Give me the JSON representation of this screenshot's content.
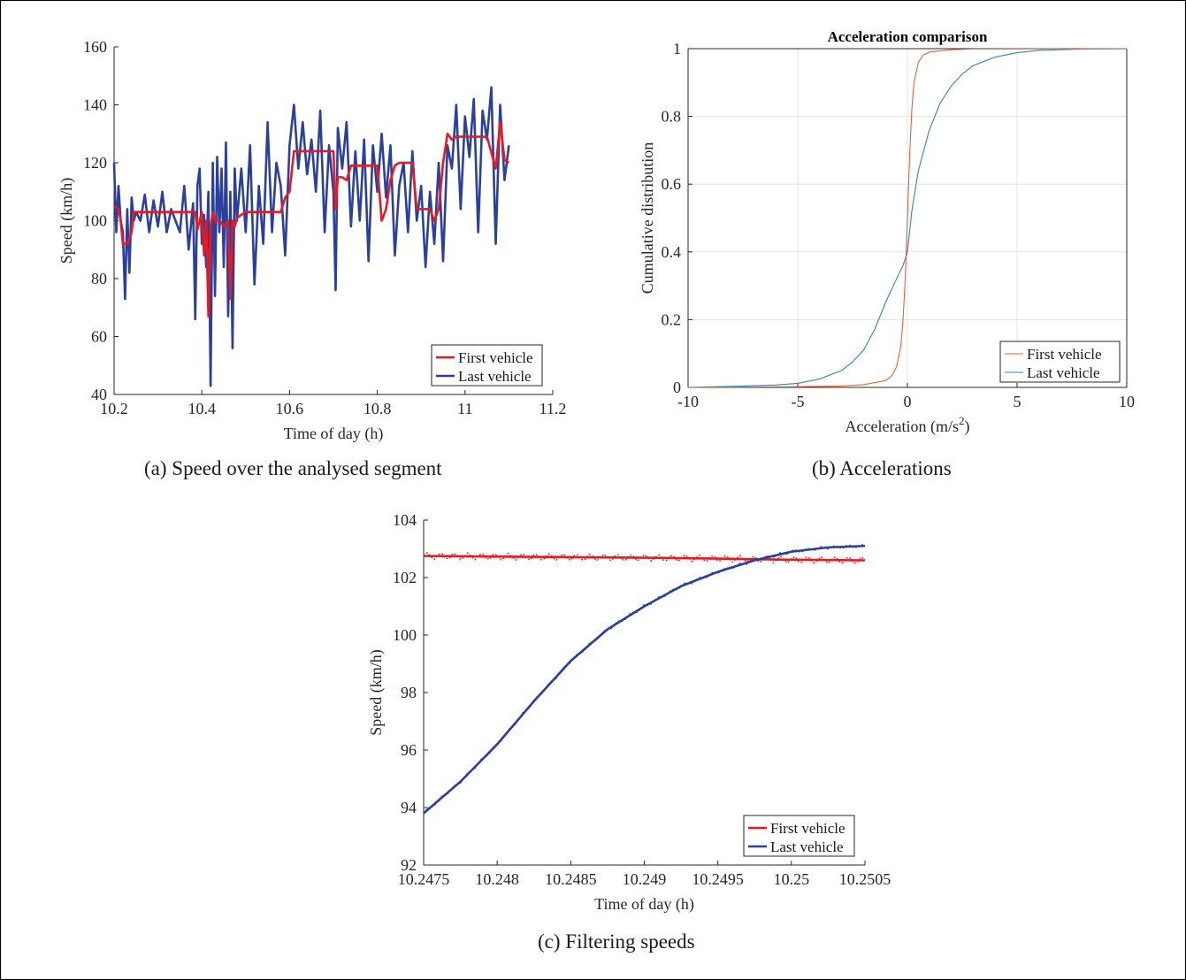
{
  "captions": {
    "a": "(a)  Speed over the analysed segment",
    "b": "(b)  Accelerations",
    "c": "(c)  Filtering speeds"
  },
  "colors": {
    "first": "#e41b23",
    "last": "#2b3f9d",
    "first_thin": "#e0643c",
    "last_thin": "#3c7fb4",
    "grid": "#e3e3e3",
    "axis": "#262626"
  },
  "chart_data": [
    {
      "id": "a",
      "type": "line",
      "title": "",
      "xlabel": "Time of day (h)",
      "ylabel": "Speed (km/h)",
      "xlim": [
        10.2,
        11.2
      ],
      "ylim": [
        40,
        160
      ],
      "xticks": [
        "10.2",
        "10.4",
        "10.6",
        "10.8",
        "11",
        "11.2"
      ],
      "yticks": [
        "40",
        "60",
        "80",
        "100",
        "120",
        "140",
        "160"
      ],
      "grid": false,
      "legend_position": "bottom-right",
      "series": [
        {
          "name": "First vehicle",
          "x": [
            10.2,
            10.21,
            10.215,
            10.22,
            10.23,
            10.24,
            10.245,
            10.25,
            10.3,
            10.35,
            10.385,
            10.39,
            10.395,
            10.4,
            10.405,
            10.41,
            10.415,
            10.42,
            10.425,
            10.43,
            10.44,
            10.45,
            10.46,
            10.465,
            10.47,
            10.475,
            10.48,
            10.49,
            10.5,
            10.55,
            10.58,
            10.59,
            10.6,
            10.61,
            10.62,
            10.65,
            10.7,
            10.705,
            10.71,
            10.72,
            10.73,
            10.74,
            10.75,
            10.8,
            10.81,
            10.82,
            10.83,
            10.84,
            10.85,
            10.88,
            10.89,
            10.9,
            10.92,
            10.93,
            10.94,
            10.95,
            10.96,
            10.97,
            10.98,
            11.0,
            11.05,
            11.07,
            11.08,
            11.09,
            11.1
          ],
          "y": [
            105,
            104,
            100,
            92,
            92,
            96,
            103,
            103,
            103,
            103,
            103,
            97,
            100,
            103,
            88,
            100,
            67,
            98,
            103,
            100,
            100,
            98,
            100,
            73,
            100,
            98,
            101,
            102,
            103,
            103,
            103,
            108,
            110,
            124,
            124,
            124,
            124,
            104,
            115,
            115,
            114,
            119,
            119,
            119,
            100,
            104,
            114,
            119,
            120,
            120,
            104,
            104,
            104,
            100,
            104,
            120,
            130,
            128,
            129,
            129,
            129,
            118,
            134,
            121,
            120
          ]
        },
        {
          "name": "Last vehicle",
          "x": [
            10.2,
            10.205,
            10.21,
            10.215,
            10.22,
            10.225,
            10.23,
            10.235,
            10.24,
            10.245,
            10.25,
            10.26,
            10.27,
            10.28,
            10.29,
            10.3,
            10.31,
            10.32,
            10.33,
            10.34,
            10.35,
            10.36,
            10.37,
            10.38,
            10.385,
            10.39,
            10.395,
            10.4,
            10.405,
            10.41,
            10.415,
            10.42,
            10.425,
            10.43,
            10.435,
            10.44,
            10.445,
            10.45,
            10.455,
            10.46,
            10.465,
            10.47,
            10.475,
            10.48,
            10.49,
            10.5,
            10.51,
            10.52,
            10.53,
            10.54,
            10.55,
            10.56,
            10.57,
            10.58,
            10.59,
            10.6,
            10.61,
            10.62,
            10.63,
            10.64,
            10.65,
            10.66,
            10.67,
            10.68,
            10.69,
            10.7,
            10.705,
            10.71,
            10.72,
            10.73,
            10.74,
            10.75,
            10.76,
            10.77,
            10.78,
            10.79,
            10.8,
            10.81,
            10.82,
            10.83,
            10.84,
            10.85,
            10.86,
            10.87,
            10.88,
            10.89,
            10.9,
            10.91,
            10.92,
            10.93,
            10.94,
            10.95,
            10.96,
            10.97,
            10.98,
            10.99,
            11.0,
            11.01,
            11.02,
            11.03,
            11.04,
            11.05,
            11.06,
            11.07,
            11.08,
            11.09,
            11.1
          ],
          "y": [
            120,
            96,
            112,
            100,
            96,
            73,
            104,
            82,
            108,
            100,
            103,
            100,
            109,
            96,
            107,
            98,
            110,
            96,
            104,
            100,
            96,
            112,
            90,
            106,
            66,
            112,
            118,
            92,
            102,
            84,
            110,
            43,
            120,
            74,
            122,
            96,
            118,
            84,
            127,
            67,
            110,
            56,
            118,
            100,
            118,
            96,
            126,
            78,
            112,
            92,
            134,
            96,
            120,
            112,
            88,
            126,
            140,
            118,
            134,
            116,
            128,
            110,
            138,
            96,
            126,
            110,
            76,
            132,
            118,
            134,
            98,
            124,
            100,
            128,
            86,
            126,
            110,
            130,
            108,
            126,
            88,
            112,
            120,
            96,
            124,
            100,
            112,
            84,
            110,
            92,
            120,
            86,
            126,
            118,
            140,
            104,
            136,
            122,
            142,
            96,
            138,
            128,
            146,
            92,
            140,
            114,
            126
          ]
        }
      ]
    },
    {
      "id": "b",
      "type": "line",
      "title": "Acceleration comparison",
      "xlabel": "Acceleration (m/s",
      "xlabel_sup": "2",
      "xlabel_end": ")",
      "ylabel": "Cumulative distribution",
      "xlim": [
        -10,
        10
      ],
      "ylim": [
        0,
        1
      ],
      "xticks": [
        "-10",
        "-5",
        "0",
        "5",
        "10"
      ],
      "yticks": [
        "0",
        "0.2",
        "0.4",
        "0.6",
        "0.8",
        "1"
      ],
      "grid": true,
      "legend_position": "bottom-right",
      "series": [
        {
          "name": "First vehicle",
          "x": [
            -10,
            -5,
            -3,
            -2,
            -1,
            -0.7,
            -0.5,
            -0.3,
            -0.2,
            -0.1,
            0,
            0.1,
            0.2,
            0.3,
            0.5,
            0.7,
            1,
            2,
            3,
            10
          ],
          "y": [
            0,
            0.002,
            0.004,
            0.008,
            0.02,
            0.035,
            0.06,
            0.12,
            0.2,
            0.32,
            0.5,
            0.68,
            0.82,
            0.9,
            0.96,
            0.98,
            0.99,
            0.997,
            0.999,
            1
          ]
        },
        {
          "name": "Last vehicle",
          "x": [
            -10,
            -8,
            -6,
            -5,
            -4,
            -3,
            -2.5,
            -2,
            -1.5,
            -1,
            -0.5,
            -0.2,
            0,
            0.2,
            0.5,
            1,
            1.5,
            2,
            2.5,
            3,
            4,
            5,
            6,
            8,
            10
          ],
          "y": [
            0,
            0.003,
            0.007,
            0.012,
            0.025,
            0.05,
            0.075,
            0.11,
            0.17,
            0.25,
            0.32,
            0.36,
            0.4,
            0.52,
            0.64,
            0.76,
            0.84,
            0.89,
            0.925,
            0.95,
            0.975,
            0.988,
            0.995,
            0.999,
            1
          ]
        }
      ]
    },
    {
      "id": "c",
      "type": "line",
      "title": "",
      "xlabel": "Time of day (h)",
      "ylabel": "Speed (km/h)",
      "xlim": [
        10.2475,
        10.2505
      ],
      "ylim": [
        92,
        104
      ],
      "xticks": [
        "10.2475",
        "10.248",
        "10.2485",
        "10.249",
        "10.2495",
        "10.25",
        "10.2505"
      ],
      "yticks": [
        "92",
        "94",
        "96",
        "98",
        "100",
        "102",
        "104"
      ],
      "grid": false,
      "legend_position": "bottom-right",
      "series": [
        {
          "name": "First vehicle",
          "x": [
            10.2475,
            10.248,
            10.2485,
            10.249,
            10.2495,
            10.25,
            10.2505
          ],
          "y": [
            102.75,
            102.73,
            102.71,
            102.69,
            102.66,
            102.62,
            102.6
          ]
        },
        {
          "name": "Last vehicle",
          "x": [
            10.2475,
            10.24775,
            10.248,
            10.24825,
            10.2485,
            10.24875,
            10.249,
            10.24925,
            10.2495,
            10.24975,
            10.25,
            10.25025,
            10.2505
          ],
          "y": [
            93.8,
            94.9,
            96.2,
            97.7,
            99.1,
            100.2,
            101.0,
            101.7,
            102.2,
            102.6,
            102.9,
            103.05,
            103.1
          ]
        }
      ]
    }
  ]
}
